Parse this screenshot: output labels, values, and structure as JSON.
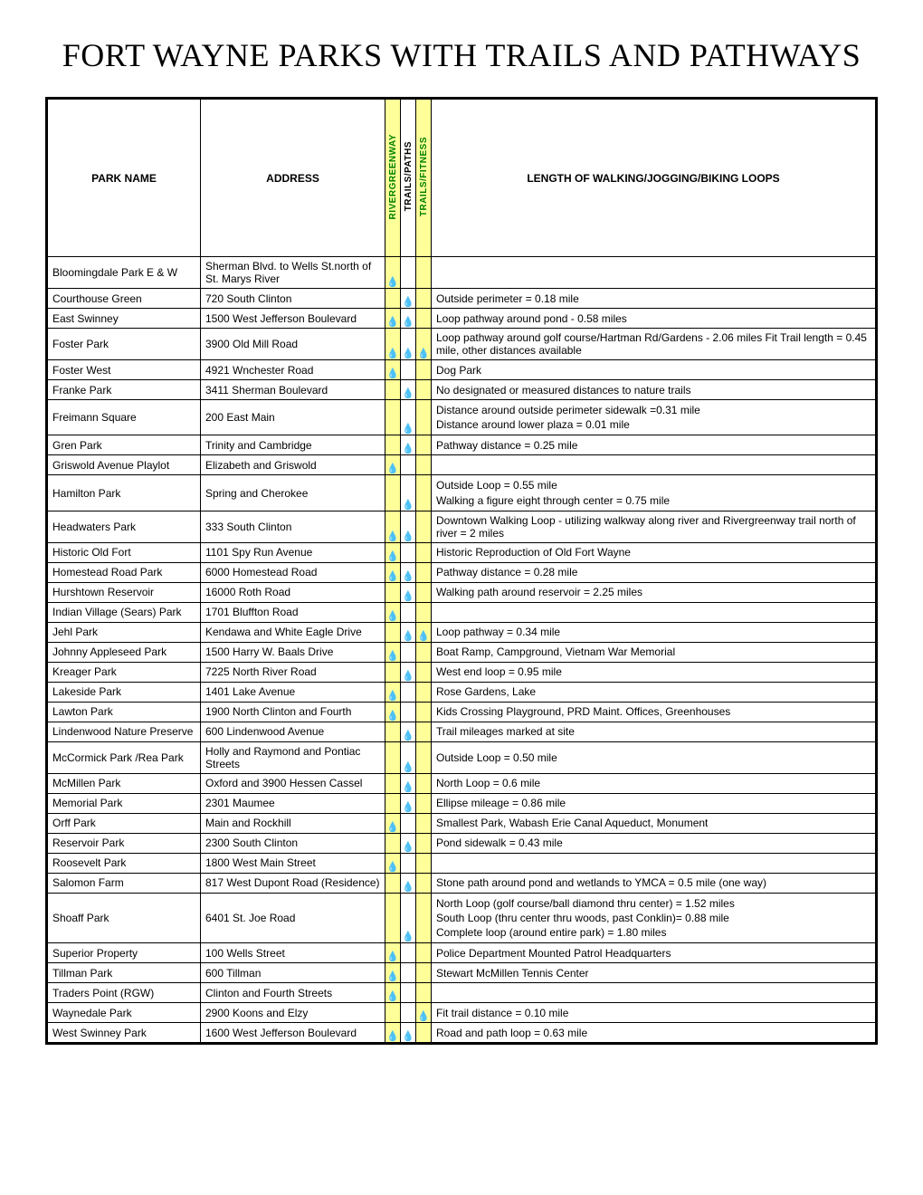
{
  "title": "FORT WAYNE PARKS WITH TRAILS AND PATHWAYS",
  "headers": {
    "park": "PARK NAME",
    "address": "ADDRESS",
    "river": "RIVERGREENWAY",
    "trails": "TRAILS/PATHS",
    "fitness": "TRAILS/FITNESS",
    "length": "LENGTH OF WALKING/JOGGING/BIKING LOOPS"
  },
  "marker": "💧",
  "colors": {
    "yellow": "#ffff99",
    "green_text": "#008000",
    "border": "#000000",
    "background": "#ffffff"
  },
  "rows": [
    {
      "park": "Bloomingdale Park E & W",
      "address": "Sherman Blvd. to Wells St.north of St. Marys River",
      "river": true,
      "trails": false,
      "fitness": false,
      "length": ""
    },
    {
      "park": "Courthouse Green",
      "address": "720 South Clinton",
      "river": false,
      "trails": true,
      "fitness": false,
      "length": "Outside perimeter = 0.18 mile"
    },
    {
      "park": "East Swinney",
      "address": "1500 West Jefferson Boulevard",
      "river": true,
      "trails": true,
      "fitness": false,
      "length": "Loop pathway around pond - 0.58 miles"
    },
    {
      "park": "Foster Park",
      "address": "3900 Old Mill Road",
      "river": true,
      "trails": true,
      "fitness": true,
      "length": "Loop pathway around golf course/Hartman Rd/Gardens - 2.06 miles Fit Trail length = 0.45 mile, other distances available"
    },
    {
      "park": "Foster West",
      "address": "4921 Wnchester Road",
      "river": true,
      "trails": false,
      "fitness": false,
      "length": "Dog Park"
    },
    {
      "park": "Franke Park",
      "address": "3411 Sherman Boulevard",
      "river": false,
      "trails": true,
      "fitness": false,
      "length": "No designated or measured distances to nature trails"
    },
    {
      "park": "Freimann Square",
      "address": "200 East Main",
      "river": false,
      "trails": true,
      "fitness": false,
      "length": "Distance around outside perimeter sidewalk =0.31 mile\nDistance around lower plaza = 0.01 mile"
    },
    {
      "park": "Gren Park",
      "address": "Trinity and Cambridge",
      "river": false,
      "trails": true,
      "fitness": false,
      "length": "Pathway distance = 0.25 mile"
    },
    {
      "park": "Griswold Avenue Playlot",
      "address": "Elizabeth and Griswold",
      "river": true,
      "trails": false,
      "fitness": false,
      "length": ""
    },
    {
      "park": "Hamilton Park",
      "address": "Spring and Cherokee",
      "river": false,
      "trails": true,
      "fitness": false,
      "length": "Outside Loop = 0.55 mile\nWalking a figure eight through center = 0.75 mile"
    },
    {
      "park": "Headwaters Park",
      "address": "333 South Clinton",
      "river": true,
      "trails": true,
      "fitness": false,
      "length": "Downtown Walking Loop - utilizing walkway along river and Rivergreenway trail north of river = 2 miles"
    },
    {
      "park": "Historic Old Fort",
      "address": "1101 Spy Run Avenue",
      "river": true,
      "trails": false,
      "fitness": false,
      "length": "Historic Reproduction of Old Fort Wayne"
    },
    {
      "park": "Homestead Road Park",
      "address": "6000 Homestead Road",
      "river": true,
      "trails": true,
      "fitness": false,
      "length": "Pathway distance = 0.28 mile"
    },
    {
      "park": "Hurshtown Reservoir",
      "address": "16000 Roth Road",
      "river": false,
      "trails": true,
      "fitness": false,
      "length": "Walking path around reservoir = 2.25 miles"
    },
    {
      "park": "Indian Village (Sears) Park",
      "address": "1701 Bluffton Road",
      "river": true,
      "trails": false,
      "fitness": false,
      "length": ""
    },
    {
      "park": "Jehl Park",
      "address": "Kendawa and White Eagle Drive",
      "river": false,
      "trails": true,
      "fitness": true,
      "length": "Loop pathway = 0.34 mile"
    },
    {
      "park": "Johnny Appleseed Park",
      "address": "1500 Harry W. Baals Drive",
      "river": true,
      "trails": false,
      "fitness": false,
      "length": "Boat Ramp, Campground, Vietnam War Memorial"
    },
    {
      "park": "Kreager Park",
      "address": "7225 North River Road",
      "river": false,
      "trails": true,
      "fitness": false,
      "length": "West end loop = 0.95 mile"
    },
    {
      "park": "Lakeside Park",
      "address": "1401 Lake Avenue",
      "river": true,
      "trails": false,
      "fitness": false,
      "length": "Rose Gardens, Lake"
    },
    {
      "park": "Lawton Park",
      "address": "1900 North Clinton and Fourth",
      "river": true,
      "trails": false,
      "fitness": false,
      "length": "Kids Crossing Playground, PRD Maint. Offices, Greenhouses"
    },
    {
      "park": "Lindenwood Nature Preserve",
      "address": "600 Lindenwood Avenue",
      "river": false,
      "trails": true,
      "fitness": false,
      "length": "Trail mileages marked at site"
    },
    {
      "park": "McCormick Park /Rea Park",
      "address": "Holly and Raymond and Pontiac Streets",
      "river": false,
      "trails": true,
      "fitness": false,
      "length": "Outside Loop = 0.50 mile"
    },
    {
      "park": "McMillen Park",
      "address": "Oxford and 3900 Hessen Cassel",
      "river": false,
      "trails": true,
      "fitness": false,
      "length": "North Loop =  0.6 mile"
    },
    {
      "park": "Memorial Park",
      "address": "2301 Maumee",
      "river": false,
      "trails": true,
      "fitness": false,
      "length": "Ellipse mileage = 0.86 mile"
    },
    {
      "park": "Orff Park",
      "address": "Main and Rockhill",
      "river": true,
      "trails": false,
      "fitness": false,
      "length": "Smallest Park, Wabash Erie Canal Aqueduct, Monument"
    },
    {
      "park": "Reservoir Park",
      "address": "2300 South Clinton",
      "river": false,
      "trails": true,
      "fitness": false,
      "length": "Pond sidewalk = 0.43 mile"
    },
    {
      "park": "Roosevelt Park",
      "address": "1800 West Main Street",
      "river": true,
      "trails": false,
      "fitness": false,
      "length": ""
    },
    {
      "park": "Salomon Farm",
      "address": "817 West Dupont Road (Residence)",
      "river": false,
      "trails": true,
      "fitness": false,
      "length": "Stone path around pond and wetlands to YMCA = 0.5 mile (one way)"
    },
    {
      "park": "Shoaff Park",
      "address": "6401 St. Joe Road",
      "river": false,
      "trails": true,
      "fitness": false,
      "length": "North Loop (golf course/ball diamond thru center) = 1.52 miles\nSouth Loop (thru center thru woods, past Conklin)= 0.88 mile\nComplete loop (around entire park) = 1.80 miles"
    },
    {
      "park": "Superior Property",
      "address": "100 Wells Street",
      "river": true,
      "trails": false,
      "fitness": false,
      "length": "Police Department Mounted Patrol Headquarters"
    },
    {
      "park": "Tillman Park",
      "address": "600 Tillman",
      "river": true,
      "trails": false,
      "fitness": false,
      "length": "Stewart McMillen Tennis Center"
    },
    {
      "park": "Traders Point (RGW)",
      "address": "Clinton and Fourth Streets",
      "river": true,
      "trails": false,
      "fitness": false,
      "length": ""
    },
    {
      "park": "Waynedale Park",
      "address": "2900 Koons and Elzy",
      "river": false,
      "trails": false,
      "fitness": true,
      "length": "Fit trail distance = 0.10 mile"
    },
    {
      "park": "West Swinney Park",
      "address": "1600 West Jefferson Boulevard",
      "river": true,
      "trails": true,
      "fitness": false,
      "length": "Road and path loop = 0.63 mile"
    }
  ]
}
